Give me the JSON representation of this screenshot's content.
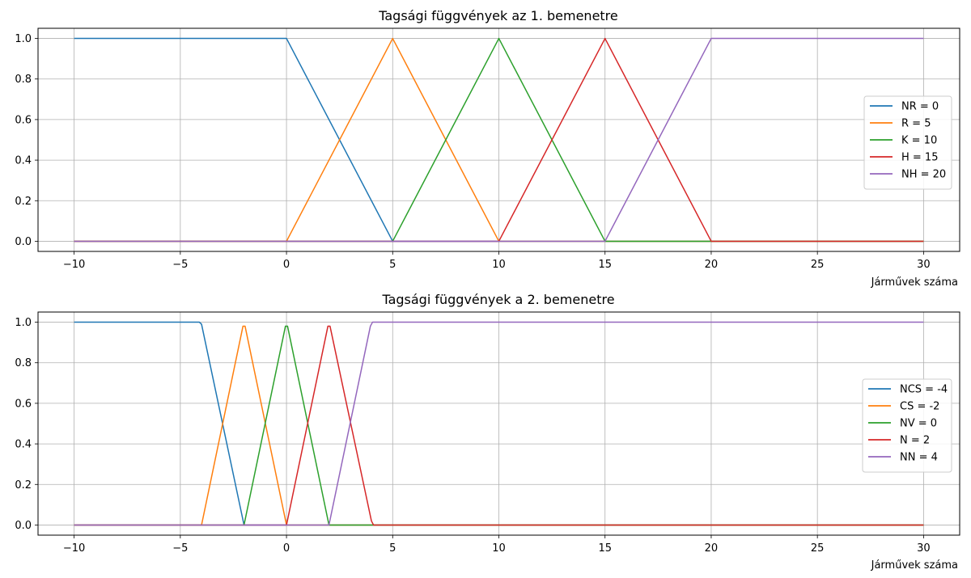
{
  "chart_data": [
    {
      "type": "line",
      "title": "Tagsági függvények az 1. bemenetre",
      "xlabel": "Járművek száma",
      "ylabel": "",
      "xlim": [
        -11.7,
        31.7
      ],
      "ylim": [
        -0.05,
        1.05
      ],
      "xticks": [
        -10,
        -5,
        0,
        5,
        10,
        15,
        20,
        25,
        30
      ],
      "xtick_labels": [
        "−10",
        "−5",
        "0",
        "5",
        "10",
        "15",
        "20",
        "25",
        "30"
      ],
      "yticks": [
        0,
        0.2,
        0.4,
        0.6,
        0.8,
        1.0
      ],
      "ytick_labels": [
        "0.0",
        "0.2",
        "0.4",
        "0.6",
        "0.8",
        "1.0"
      ],
      "grid": true,
      "legend": "center-right",
      "series": [
        {
          "name": "NR = 0",
          "color": "#1f77b4",
          "x": [
            -10,
            0,
            5,
            30
          ],
          "y": [
            1,
            1,
            0,
            0
          ]
        },
        {
          "name": "R = 5",
          "color": "#ff7f0e",
          "x": [
            -10,
            0,
            5,
            10,
            30
          ],
          "y": [
            0,
            0,
            1,
            0,
            0
          ]
        },
        {
          "name": "K = 10",
          "color": "#2ca02c",
          "x": [
            -10,
            5,
            10,
            15,
            30
          ],
          "y": [
            0,
            0,
            1,
            0,
            0
          ]
        },
        {
          "name": "H = 15",
          "color": "#d62728",
          "x": [
            -10,
            10,
            15,
            20,
            30
          ],
          "y": [
            0,
            0,
            1,
            0,
            0
          ]
        },
        {
          "name": "NH = 20",
          "color": "#9467bd",
          "x": [
            -10,
            15,
            20,
            30
          ],
          "y": [
            0,
            0,
            1,
            1
          ]
        }
      ]
    },
    {
      "type": "line",
      "title": "Tagsági függvények a 2. bemenetre",
      "xlabel": "Járművek száma",
      "ylabel": "",
      "xlim": [
        -11.7,
        31.7
      ],
      "ylim": [
        -0.05,
        1.05
      ],
      "xticks": [
        -10,
        -5,
        0,
        5,
        10,
        15,
        20,
        25,
        30
      ],
      "xtick_labels": [
        "−10",
        "−5",
        "0",
        "5",
        "10",
        "15",
        "20",
        "25",
        "30"
      ],
      "yticks": [
        0,
        0.2,
        0.4,
        0.6,
        0.8,
        1.0
      ],
      "ytick_labels": [
        "0.0",
        "0.2",
        "0.4",
        "0.6",
        "0.8",
        "1.0"
      ],
      "grid": true,
      "legend": "center-right",
      "series": [
        {
          "name": "NCS = -4",
          "color": "#1f77b4",
          "x": [
            -10,
            -4.1,
            -4,
            -2,
            30
          ],
          "y": [
            1,
            1,
            0.99,
            0,
            0
          ]
        },
        {
          "name": "CS = -2",
          "color": "#ff7f0e",
          "x": [
            -10,
            -4,
            -2.05,
            -1.95,
            0,
            30
          ],
          "y": [
            0,
            0,
            0.98,
            0.98,
            0,
            0
          ]
        },
        {
          "name": "NV = 0",
          "color": "#2ca02c",
          "x": [
            -10,
            -2,
            -0.05,
            0.05,
            2,
            30
          ],
          "y": [
            0,
            0,
            0.98,
            0.98,
            0,
            0
          ]
        },
        {
          "name": "N = 2",
          "color": "#d62728",
          "x": [
            -10,
            0,
            1.95,
            2.05,
            4,
            4.1,
            30
          ],
          "y": [
            0,
            0,
            0.98,
            0.98,
            0.02,
            0,
            0
          ]
        },
        {
          "name": "NN = 4",
          "color": "#9467bd",
          "x": [
            -10,
            2,
            3.95,
            4.05,
            30
          ],
          "y": [
            0,
            0,
            0.98,
            1,
            1
          ]
        }
      ]
    }
  ]
}
